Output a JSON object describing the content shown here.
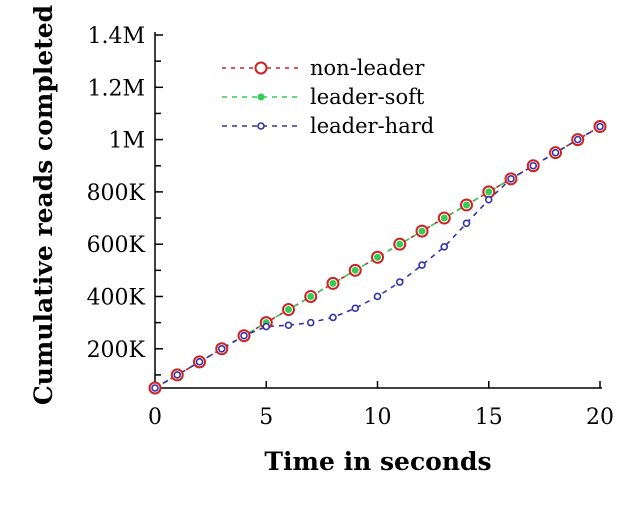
{
  "chart_data": {
    "type": "line",
    "title": "",
    "xlabel": "Time in seconds",
    "ylabel": "Cumulative reads completed",
    "xlim": [
      0,
      20
    ],
    "ylim": [
      50000,
      1400000
    ],
    "x_ticks": [
      0,
      5,
      10,
      15,
      20
    ],
    "x_tick_labels": [
      "0",
      "5",
      "10",
      "15",
      "20"
    ],
    "y_ticks": [
      200000,
      400000,
      600000,
      800000,
      1000000,
      1200000,
      1400000
    ],
    "y_tick_labels": [
      "200K",
      "400K",
      "600K",
      "800K",
      "1M",
      "1.2M",
      "1.4M"
    ],
    "grid": false,
    "legend_position": "top-left",
    "x": [
      0,
      1,
      2,
      3,
      4,
      5,
      6,
      7,
      8,
      9,
      10,
      11,
      12,
      13,
      14,
      15,
      16,
      17,
      18,
      19,
      20
    ],
    "series": [
      {
        "name": "non-leader",
        "color": "#cc2222",
        "marker": "large-circle",
        "values": [
          50000,
          100000,
          150000,
          200000,
          250000,
          300000,
          350000,
          400000,
          450000,
          500000,
          550000,
          600000,
          650000,
          700000,
          750000,
          800000,
          850000,
          900000,
          950000,
          1000000,
          1050000
        ]
      },
      {
        "name": "leader-soft",
        "color": "#33cc55",
        "marker": "small-filled-circle",
        "values": [
          50000,
          100000,
          150000,
          200000,
          250000,
          300000,
          350000,
          400000,
          450000,
          500000,
          550000,
          600000,
          650000,
          700000,
          750000,
          800000,
          850000,
          900000,
          950000,
          1000000,
          1050000
        ]
      },
      {
        "name": "leader-hard",
        "color": "#3333aa",
        "marker": "small-circle",
        "values": [
          50000,
          100000,
          150000,
          200000,
          250000,
          285000,
          290000,
          300000,
          320000,
          355000,
          400000,
          455000,
          520000,
          590000,
          680000,
          770000,
          850000,
          900000,
          950000,
          1000000,
          1050000
        ]
      }
    ]
  }
}
